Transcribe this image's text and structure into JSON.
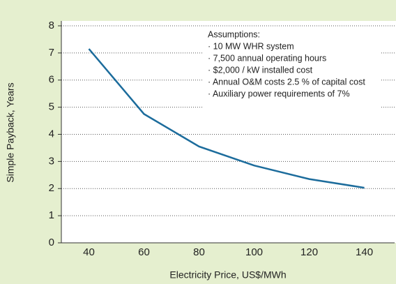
{
  "chart_data": {
    "type": "line",
    "x_label": "Electricity Price, US$/MWh",
    "y_label": "Simple Payback, Years",
    "x": [
      40,
      60,
      80,
      100,
      120,
      140
    ],
    "series": [
      {
        "name": "Simple payback",
        "color": "#1c6c9c",
        "values": [
          7.15,
          4.75,
          3.55,
          2.85,
          2.35,
          2.03
        ]
      }
    ],
    "xlim": [
      30,
      151
    ],
    "xticks": [
      40,
      60,
      80,
      100,
      120,
      140
    ],
    "ylim": [
      0,
      8
    ],
    "yticks": [
      0,
      1,
      2,
      3,
      4,
      5,
      6,
      7,
      8
    ],
    "grid": true,
    "annotation": {
      "title": "Assumptions:",
      "items": [
        "· 10 MW WHR system",
        "· 7,500 annual operating hours",
        "· $2,000 / kW installed cost",
        "· Annual O&M costs 2.5 % of capital cost",
        "· Auxiliary power requirements of 7%"
      ]
    }
  }
}
